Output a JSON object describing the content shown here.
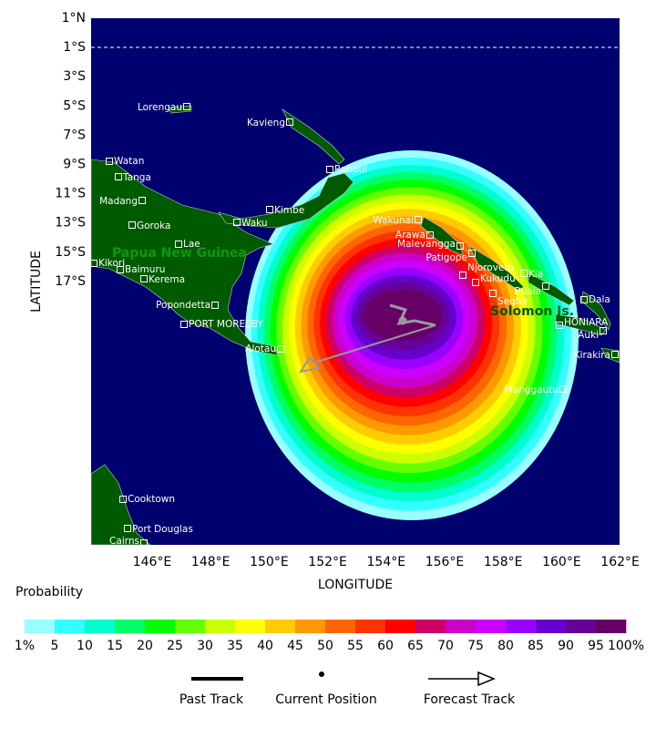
{
  "map": {
    "y_axis_title": "LATITUDE",
    "x_axis_title": "LONGITUDE",
    "lat_ticks": [
      "1°N",
      "1°S",
      "3°S",
      "5°S",
      "7°S",
      "9°S",
      "11°S",
      "13°S",
      "15°S",
      "17°S"
    ],
    "lon_ticks": [
      "146°E",
      "148°E",
      "150°E",
      "152°E",
      "154°E",
      "156°E",
      "158°E",
      "160°E",
      "162°E"
    ],
    "places": [
      "Lorengau",
      "Kavieng",
      "Rabaul",
      "Watan",
      "Tanga",
      "Madang",
      "Goroka",
      "Kimbe",
      "Waku",
      "Lae",
      "Kikori",
      "Baimuru",
      "Kerema",
      "Popondetta",
      "PORT MORESBY",
      "Alotau",
      "Wakunai",
      "Arawa",
      "Malevangga",
      "Patigope",
      "Njoroveto",
      "Kia",
      "Kukudu",
      "Buala",
      "Seghe",
      "Dala",
      "HONIARA",
      "Auki",
      "Kirakira",
      "Manggautu",
      "Cooktown",
      "Port Douglas",
      "Cairns"
    ],
    "regions": [
      "Papua New Guinea",
      "Solomon Is."
    ]
  },
  "legend": {
    "title": "Probability",
    "colors": [
      "#99ffff",
      "#33ffff",
      "#00ffcc",
      "#00ff66",
      "#00ff00",
      "#66ff00",
      "#ccff00",
      "#ffff00",
      "#ffcc00",
      "#ff9900",
      "#ff6600",
      "#ff3300",
      "#ff0000",
      "#cc0066",
      "#cc00cc",
      "#cc00ff",
      "#9900ff",
      "#6600cc",
      "#660099",
      "#660066"
    ],
    "labels": [
      "1%",
      "5",
      "10",
      "15",
      "20",
      "25",
      "30",
      "35",
      "40",
      "45",
      "50",
      "55",
      "60",
      "65",
      "70",
      "75",
      "80",
      "85",
      "90",
      "95",
      "100%"
    ],
    "items": [
      "Past Track",
      "Current Position",
      "Forecast Track"
    ]
  }
}
